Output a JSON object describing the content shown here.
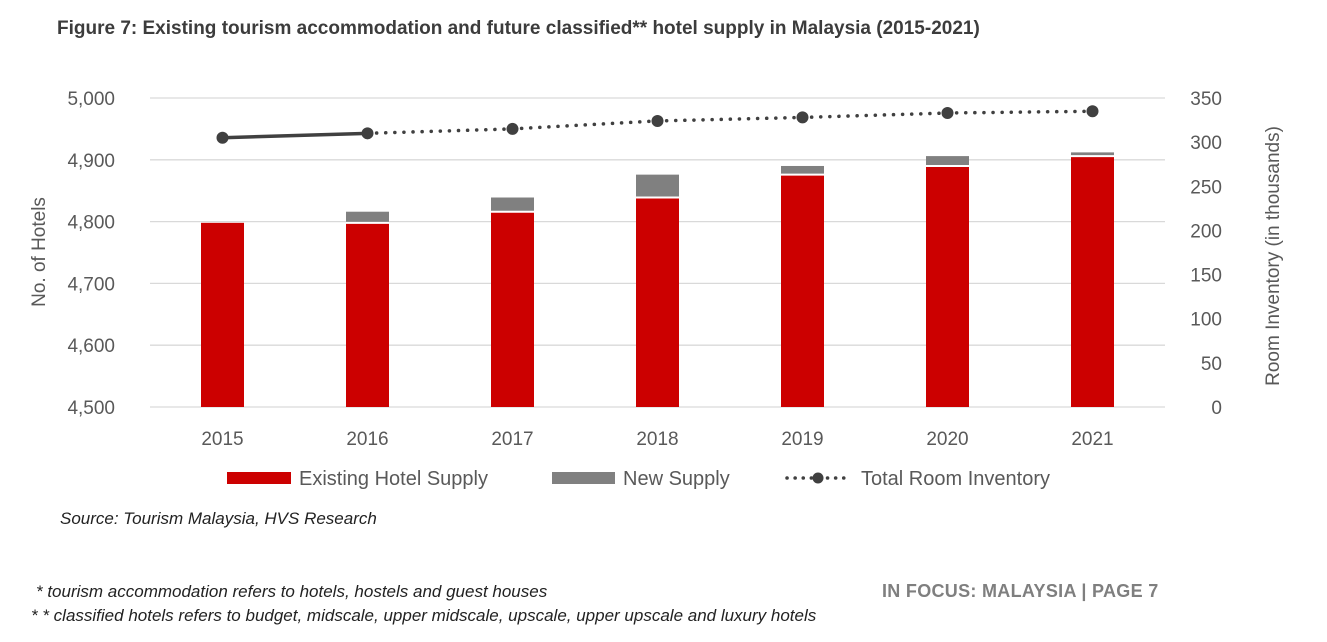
{
  "title": "Figure 7: Existing tourism accommodation and future classified** hotel supply in Malaysia (2015-2021)",
  "source": "Source: Tourism Malaysia, HVS Research",
  "footnotes": [
    "* tourism accommodation refers to hotels, hostels and guest houses",
    "* * classified hotels refers to budget, midscale, upper midscale, upscale, upper upscale and luxury hotels"
  ],
  "page_tag": "IN FOCUS:  MALAYSIA | PAGE 7",
  "colors": {
    "existing": "#cc0000",
    "new_supply": "#808080",
    "inventory_line": "#404040",
    "grid": "#d9d9d9"
  },
  "chart_data": {
    "type": "bar",
    "categories": [
      "2015",
      "2016",
      "2017",
      "2018",
      "2019",
      "2020",
      "2021"
    ],
    "series": [
      {
        "name": "Existing Hotel Supply",
        "type": "stacked-bar",
        "axis": "left",
        "values": [
          4798,
          4798,
          4816,
          4839,
          4876,
          4890,
          4906
        ]
      },
      {
        "name": "New Supply",
        "type": "stacked-bar",
        "axis": "left",
        "values": [
          0,
          18,
          23,
          37,
          14,
          16,
          6
        ]
      },
      {
        "name": "Total Room Inventory",
        "type": "line",
        "axis": "right",
        "values": [
          305,
          310,
          315,
          324,
          328,
          333,
          335
        ]
      }
    ],
    "ylabel": "No. of Hotels",
    "y2label": "Room Inventory (in thousands)",
    "ylim": [
      4500,
      5000
    ],
    "y2lim": [
      0,
      350
    ],
    "yticks": [
      "4,500",
      "4,600",
      "4,700",
      "4,800",
      "4,900",
      "5,000"
    ],
    "y2ticks": [
      "0",
      "50",
      "100",
      "150",
      "200",
      "250",
      "300",
      "350"
    ],
    "grid": true,
    "legend_position": "bottom"
  }
}
